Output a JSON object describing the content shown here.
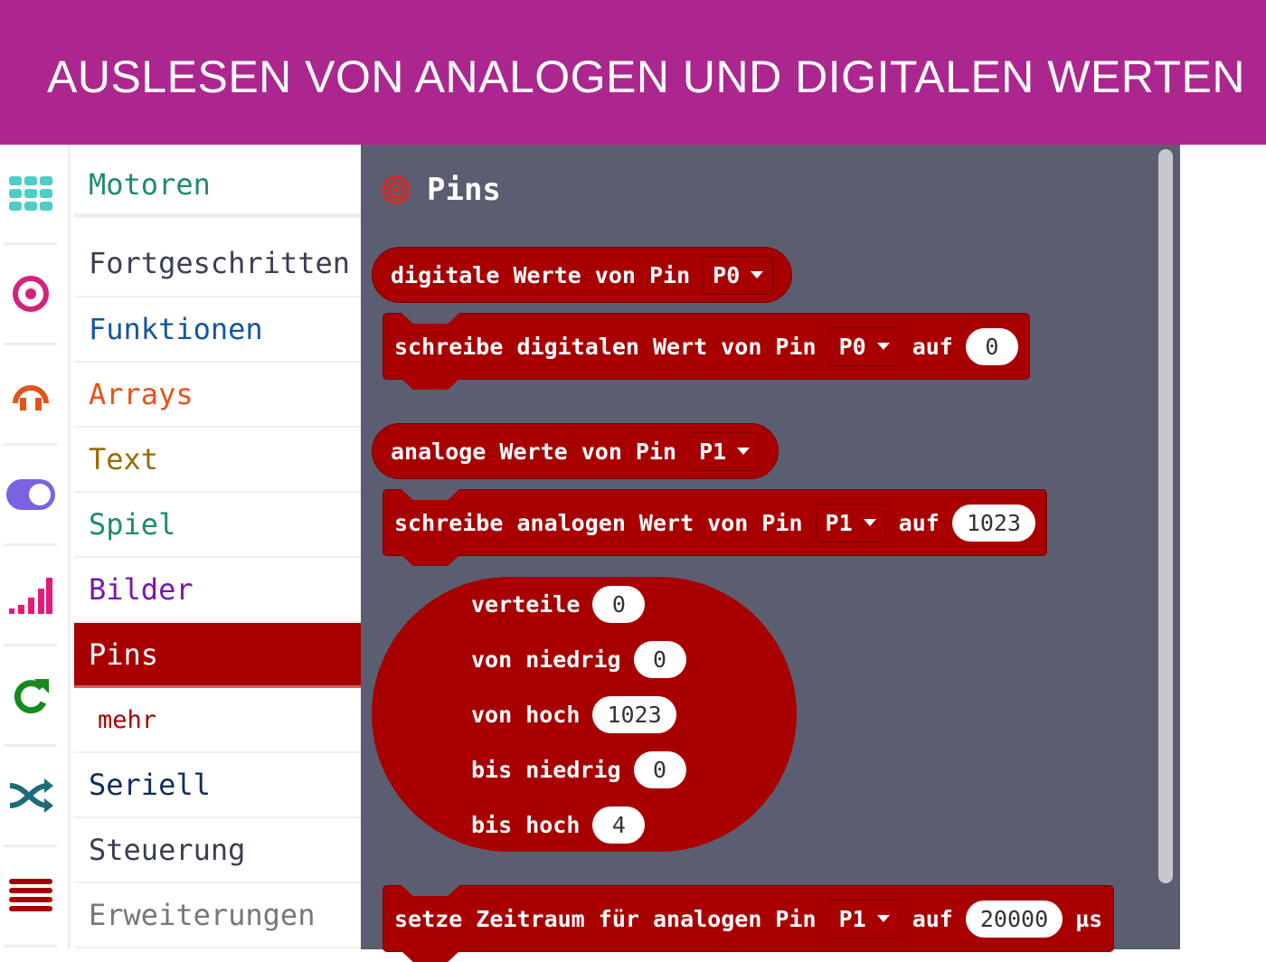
{
  "header": {
    "title": "AUSLESEN VON ANALOGEN UND DIGITALEN WERTEN"
  },
  "sidebar": {
    "categories": [
      {
        "label": "Motoren",
        "color": "#1f8a70",
        "icon": "grid-icon"
      },
      {
        "label": "Fortgeschritten",
        "color": "#3a3f52",
        "icon": "target-icon"
      },
      {
        "label": "Funktionen",
        "color": "#1456a0",
        "icon": "headphones-icon"
      },
      {
        "label": "Arrays",
        "color": "#e3531b",
        "icon": "toggle-icon"
      },
      {
        "label": "Text",
        "color": "#9a6a00",
        "icon": "signal-icon"
      },
      {
        "label": "Spiel",
        "color": "#1f8a70",
        "icon": "refresh-icon"
      },
      {
        "label": "Bilder",
        "color": "#7a15b0",
        "icon": "shuffle-icon"
      },
      {
        "label": "Pins",
        "color": "#ffffff",
        "icon": "list-icon"
      },
      {
        "label": "mehr",
        "color": "#a80000"
      },
      {
        "label": "Seriell",
        "color": "#0d2e5a"
      },
      {
        "label": "Steuerung",
        "color": "#3a3f52"
      },
      {
        "label": "Erweiterungen",
        "color": "#777777"
      }
    ]
  },
  "workspace": {
    "title": "Pins",
    "block_color": "#a80000",
    "b1": {
      "text": "digitale Werte von Pin",
      "pin": "P0"
    },
    "b2": {
      "text": "schreibe digitalen Wert von Pin",
      "pin": "P0",
      "auf": "auf",
      "value": "0"
    },
    "b3": {
      "text": "analoge Werte von Pin",
      "pin": "P1"
    },
    "b4": {
      "text": "schreibe analogen Wert von Pin",
      "pin": "P1",
      "auf": "auf",
      "value": "1023"
    },
    "map": [
      {
        "label": "verteile",
        "value": "0"
      },
      {
        "label": "von niedrig",
        "value": "0"
      },
      {
        "label": "von hoch",
        "value": "1023"
      },
      {
        "label": "bis niedrig",
        "value": "0"
      },
      {
        "label": "bis hoch",
        "value": "4"
      }
    ],
    "b5": {
      "text": "setze Zeitraum für analogen Pin",
      "pin": "P1",
      "auf": "auf",
      "value": "20000",
      "unit": "µs"
    }
  }
}
